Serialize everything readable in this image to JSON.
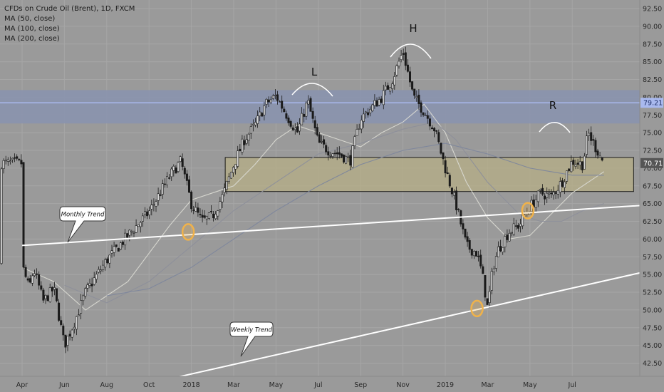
{
  "legend": {
    "title": "CFDs on Crude Oil (Brent), 1D, FXCM",
    "ma50": "MA (50, close)",
    "ma100": "MA (100, close)",
    "ma200": "MA (200, close)"
  },
  "annotations": {
    "left_shoulder": "L",
    "head": "H",
    "right_shoulder": "R",
    "monthly_trend": "Monthly Trend",
    "weekly_trend": "Weekly Trend"
  },
  "colors": {
    "background": "#9a9a9a",
    "grid": "#a6a6a6",
    "candle": "#1a1a1a",
    "resistance_band": "#8a93ae",
    "resistance_line": "#a9b9ee",
    "support_zone": "#b5ad86",
    "trendline": "#ffffff",
    "highlight": "#f0b24a",
    "ma50": "#d9d9d2",
    "ma100": "#8d8f9a",
    "ma200": "#7d869c"
  },
  "chart_data": {
    "type": "candlestick",
    "title": "CFDs on Crude Oil (Brent), 1D, FXCM",
    "x_tick_labels": [
      "Apr",
      "Jun",
      "Aug",
      "Oct",
      "2018",
      "Mar",
      "May",
      "Jul",
      "Sep",
      "Nov",
      "2019",
      "Mar",
      "May",
      "Jul"
    ],
    "y_tick_labels": [
      "92.50",
      "90.00",
      "87.50",
      "85.00",
      "82.50",
      "80.00",
      "77.50",
      "75.00",
      "72.50",
      "70.00",
      "67.50",
      "65.00",
      "62.50",
      "60.00",
      "57.50",
      "55.00",
      "52.50",
      "50.00",
      "47.50",
      "45.00",
      "42.50"
    ],
    "ylim": [
      40.5,
      93.8
    ],
    "price_labels": [
      {
        "text": "79.21",
        "value": 79.21,
        "color": "#a9b9ee"
      },
      {
        "text": "70.71",
        "value": 70.71,
        "color": "#555555"
      }
    ],
    "price_path": [
      {
        "x": 0,
        "y": 56.3
      },
      {
        "x": 0.33,
        "y": 53.0
      },
      {
        "x": 0.55,
        "y": 55.8
      },
      {
        "x": 1.0,
        "y": 51.2
      },
      {
        "x": 1.5,
        "y": 53.0
      },
      {
        "x": 2.0,
        "y": 45.0
      },
      {
        "x": 2.5,
        "y": 48.5
      },
      {
        "x": 3.0,
        "y": 52.5
      },
      {
        "x": 4.0,
        "y": 57.0
      },
      {
        "x": 5.0,
        "y": 60.5
      },
      {
        "x": 6.0,
        "y": 63.8
      },
      {
        "x": 7.0,
        "y": 69.0
      },
      {
        "x": 7.5,
        "y": 71.0
      },
      {
        "x": 8.0,
        "y": 65.0
      },
      {
        "x": 8.5,
        "y": 62.5
      },
      {
        "x": 9.0,
        "y": 63.2
      },
      {
        "x": 9.5,
        "y": 66.2
      },
      {
        "x": 10.0,
        "y": 70.5
      },
      {
        "x": 10.5,
        "y": 74.0
      },
      {
        "x": 11.0,
        "y": 76.0
      },
      {
        "x": 11.5,
        "y": 79.0
      },
      {
        "x": 12.0,
        "y": 80.2
      },
      {
        "x": 12.5,
        "y": 77.5
      },
      {
        "x": 13.0,
        "y": 75.0
      },
      {
        "x": 13.5,
        "y": 79.5
      },
      {
        "x": 14.0,
        "y": 73.5
      },
      {
        "x": 14.5,
        "y": 72.5
      },
      {
        "x": 15.0,
        "y": 72.0
      },
      {
        "x": 15.5,
        "y": 71.0
      },
      {
        "x": 16.0,
        "y": 77.0
      },
      {
        "x": 16.5,
        "y": 78.5
      },
      {
        "x": 17.0,
        "y": 80.0
      },
      {
        "x": 17.5,
        "y": 82.5
      },
      {
        "x": 18.0,
        "y": 86.5
      },
      {
        "x": 18.5,
        "y": 80.0
      },
      {
        "x": 19.0,
        "y": 78.0
      },
      {
        "x": 19.5,
        "y": 75.5
      },
      {
        "x": 20.0,
        "y": 70.0
      },
      {
        "x": 20.5,
        "y": 65.0
      },
      {
        "x": 21.0,
        "y": 59.0
      },
      {
        "x": 21.5,
        "y": 58.0
      },
      {
        "x": 21.75,
        "y": 55.0
      },
      {
        "x": 22.0,
        "y": 50.2
      },
      {
        "x": 22.25,
        "y": 56.0
      },
      {
        "x": 22.5,
        "y": 58.5
      },
      {
        "x": 23.0,
        "y": 61.0
      },
      {
        "x": 23.5,
        "y": 62.0
      },
      {
        "x": 24.0,
        "y": 64.5
      },
      {
        "x": 24.5,
        "y": 66.5
      },
      {
        "x": 25.0,
        "y": 66.0
      },
      {
        "x": 25.5,
        "y": 68.0
      },
      {
        "x": 26.0,
        "y": 71.0
      },
      {
        "x": 26.5,
        "y": 70.5
      },
      {
        "x": 26.75,
        "y": 75.0
      },
      {
        "x": 27.0,
        "y": 73.5
      },
      {
        "x": 27.5,
        "y": 70.7
      }
    ],
    "moving_averages": [
      {
        "name": "MA (50, close)",
        "points": [
          {
            "x": 0,
            "y": 56.0
          },
          {
            "x": 1.5,
            "y": 54.0
          },
          {
            "x": 3.0,
            "y": 50.0
          },
          {
            "x": 4.0,
            "y": 52.0
          },
          {
            "x": 5.0,
            "y": 54.0
          },
          {
            "x": 6.0,
            "y": 58.0
          },
          {
            "x": 7.0,
            "y": 62.0
          },
          {
            "x": 8.0,
            "y": 65.5
          },
          {
            "x": 9.0,
            "y": 66.5
          },
          {
            "x": 10.0,
            "y": 67.5
          },
          {
            "x": 11.0,
            "y": 70.5
          },
          {
            "x": 12.0,
            "y": 74.0
          },
          {
            "x": 13.0,
            "y": 76.0
          },
          {
            "x": 14.0,
            "y": 75.0
          },
          {
            "x": 15.0,
            "y": 74.0
          },
          {
            "x": 16.0,
            "y": 73.0
          },
          {
            "x": 17.0,
            "y": 75.0
          },
          {
            "x": 18.0,
            "y": 76.5
          },
          {
            "x": 19.0,
            "y": 79.0
          },
          {
            "x": 20.0,
            "y": 75.0
          },
          {
            "x": 21.0,
            "y": 68.0
          },
          {
            "x": 22.0,
            "y": 63.0
          },
          {
            "x": 23.0,
            "y": 60.0
          },
          {
            "x": 24.0,
            "y": 60.5
          },
          {
            "x": 25.0,
            "y": 63.5
          },
          {
            "x": 26.0,
            "y": 66.5
          },
          {
            "x": 27.0,
            "y": 68.5
          },
          {
            "x": 27.5,
            "y": 69.5
          }
        ]
      },
      {
        "name": "MA (100, close)",
        "points": [
          {
            "x": 2.0,
            "y": 53.5
          },
          {
            "x": 4.0,
            "y": 51.0
          },
          {
            "x": 6.0,
            "y": 54.0
          },
          {
            "x": 8.0,
            "y": 59.0
          },
          {
            "x": 10.0,
            "y": 64.0
          },
          {
            "x": 12.0,
            "y": 68.0
          },
          {
            "x": 14.0,
            "y": 72.0
          },
          {
            "x": 16.0,
            "y": 73.5
          },
          {
            "x": 18.0,
            "y": 75.5
          },
          {
            "x": 19.5,
            "y": 76.5
          },
          {
            "x": 20.5,
            "y": 74.0
          },
          {
            "x": 22.0,
            "y": 68.0
          },
          {
            "x": 23.5,
            "y": 63.5
          },
          {
            "x": 24.5,
            "y": 62.5
          },
          {
            "x": 25.5,
            "y": 62.5
          },
          {
            "x": 26.5,
            "y": 64.0
          },
          {
            "x": 27.5,
            "y": 65.0
          }
        ]
      },
      {
        "name": "MA (200, close)",
        "points": [
          {
            "x": 4.0,
            "y": 52.0
          },
          {
            "x": 6.0,
            "y": 53.0
          },
          {
            "x": 8.0,
            "y": 56.0
          },
          {
            "x": 10.0,
            "y": 60.0
          },
          {
            "x": 12.0,
            "y": 64.0
          },
          {
            "x": 14.0,
            "y": 67.5
          },
          {
            "x": 16.0,
            "y": 70.5
          },
          {
            "x": 18.0,
            "y": 72.5
          },
          {
            "x": 20.0,
            "y": 73.5
          },
          {
            "x": 22.0,
            "y": 72.0
          },
          {
            "x": 24.0,
            "y": 70.0
          },
          {
            "x": 26.0,
            "y": 69.0
          },
          {
            "x": 27.5,
            "y": 69.0
          }
        ]
      }
    ],
    "resistance_band": {
      "y_low": 76.3,
      "y_high": 81.0
    },
    "resistance_line": 79.21,
    "support_zone": {
      "x_start": 9.6,
      "x_end": 28.9,
      "y_low": 66.7,
      "y_high": 71.5
    },
    "trendlines": [
      {
        "name": "Monthly Trend",
        "from": {
          "x": 0,
          "y": 59.1
        },
        "to": {
          "x": 29.6,
          "y": 64.8
        }
      },
      {
        "name": "Weekly Trend",
        "from": {
          "x": 7.3,
          "y": 40.5
        },
        "to": {
          "x": 29.6,
          "y": 55.5
        }
      }
    ],
    "highlights": [
      {
        "x": 7.85,
        "y": 61.0
      },
      {
        "x": 21.5,
        "y": 50.2
      },
      {
        "x": 23.9,
        "y": 64.0
      }
    ]
  }
}
